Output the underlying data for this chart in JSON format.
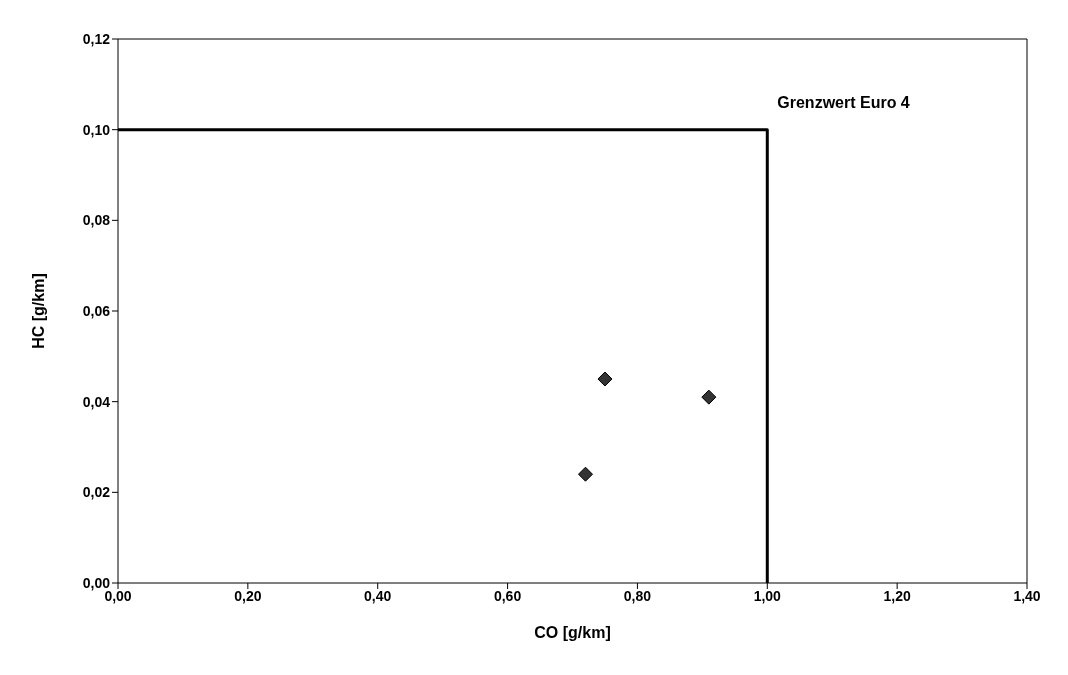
{
  "chart_data": {
    "type": "scatter",
    "xlabel": "CO [g/km]",
    "ylabel": "HC [g/km]",
    "xlim": [
      0,
      1.4
    ],
    "ylim": [
      0,
      0.12
    ],
    "xticks": [
      {
        "value": 0,
        "label": "0,00"
      },
      {
        "value": 0.2,
        "label": "0,20"
      },
      {
        "value": 0.4,
        "label": "0,40"
      },
      {
        "value": 0.6,
        "label": "0,60"
      },
      {
        "value": 0.8,
        "label": "0,80"
      },
      {
        "value": 1,
        "label": "1,00"
      },
      {
        "value": 1.2,
        "label": "1,20"
      },
      {
        "value": 1.4,
        "label": "1,40"
      }
    ],
    "yticks": [
      {
        "value": 0,
        "label": "0,00"
      },
      {
        "value": 0.02,
        "label": "0,02"
      },
      {
        "value": 0.04,
        "label": "0,04"
      },
      {
        "value": 0.06,
        "label": "0,06"
      },
      {
        "value": 0.08,
        "label": "0,08"
      },
      {
        "value": 0.1,
        "label": "0,10"
      },
      {
        "value": 0.12,
        "label": "0,12"
      }
    ],
    "grid": false,
    "legend": false,
    "series": [
      {
        "type": "line",
        "marker": "none",
        "color": "#000000",
        "x": [
          0,
          1,
          1
        ],
        "values": [
          0.1,
          0.1,
          0
        ]
      },
      {
        "marker": "diamond",
        "color": "#333333",
        "x": [
          0.72,
          0.75,
          0.91
        ],
        "values": [
          0.024,
          0.045,
          0.041
        ]
      }
    ],
    "annotations": [
      {
        "text": "Grenzwert Euro 4",
        "x": 1,
        "y": 0.1
      }
    ]
  }
}
